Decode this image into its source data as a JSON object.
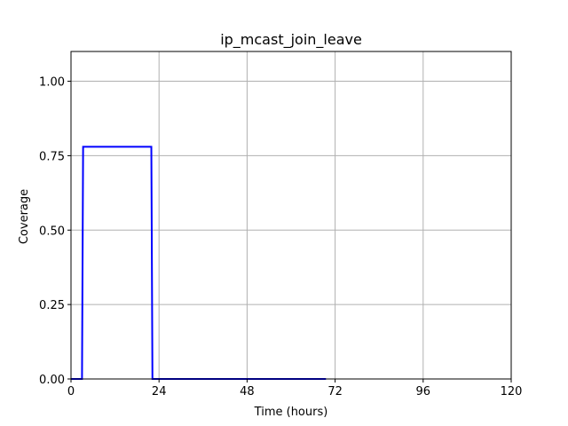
{
  "chart_data": {
    "type": "line",
    "title": "ip_mcast_join_leave",
    "xlabel": "Time (hours)",
    "ylabel": "Coverage",
    "xlim": [
      0,
      120
    ],
    "ylim": [
      0,
      1.1
    ],
    "xticks": [
      0,
      24,
      48,
      72,
      96,
      120
    ],
    "xtick_labels": [
      "0",
      "24",
      "48",
      "72",
      "96",
      "120"
    ],
    "yticks": [
      0,
      0.25,
      0.5,
      0.75,
      1.0
    ],
    "ytick_labels": [
      "0.00",
      "0.25",
      "0.50",
      "0.75",
      "1.00"
    ],
    "grid": true,
    "series": [
      {
        "color": "#0000ff",
        "x": [
          0,
          3,
          3.3,
          21.9,
          22.2,
          69.5
        ],
        "y": [
          0,
          0,
          0.78,
          0.78,
          0,
          0
        ]
      }
    ]
  }
}
